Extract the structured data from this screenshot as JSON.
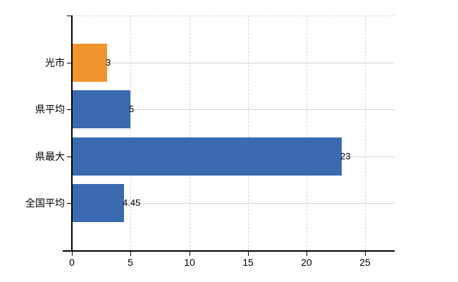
{
  "page": {
    "background_color": "#ffffff"
  },
  "chart_data": {
    "type": "bar",
    "orientation": "horizontal",
    "title": "",
    "xlabel": "",
    "ylabel": "",
    "categories": [
      "光市",
      "県平均",
      "県最大",
      "全国平均"
    ],
    "values": [
      3,
      5,
      23,
      4.45
    ],
    "value_labels": [
      "3",
      "5",
      "23",
      "4.45"
    ],
    "bar_colors": [
      "#f0952e",
      "#3a6bb0",
      "#3a6bb0",
      "#3a6bb0"
    ],
    "highlight_color": "#f0952e",
    "default_bar_color": "#3a6bb0",
    "x_tick_labels": [
      "0",
      "5",
      "10",
      "15",
      "20",
      "25"
    ],
    "x_tick_values": [
      0,
      5,
      10,
      15,
      20,
      25
    ],
    "xlim": [
      0,
      27.5
    ],
    "legend": "none",
    "grid": {
      "vertical_style": "dashed",
      "horizontal_style": "solid",
      "color": "#d3d3d3"
    },
    "axis_color": "#000000",
    "text_color": "#000000"
  }
}
